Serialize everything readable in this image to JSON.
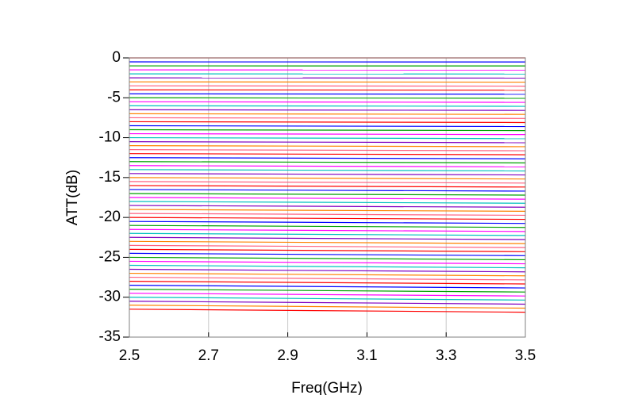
{
  "chart_data": {
    "type": "line",
    "x_label": "Freq(GHz)",
    "y_label": "ATT(dB)",
    "x": [
      2.5,
      3.5
    ],
    "xlim": [
      2.5,
      3.5
    ],
    "xticks": [
      2.5,
      2.7,
      2.9,
      3.1,
      3.3,
      3.5
    ],
    "ylim": [
      -35,
      0
    ],
    "yticks": [
      0,
      -5,
      -10,
      -15,
      -20,
      -25,
      -30,
      -35
    ],
    "grid": true,
    "series": [
      {
        "color": "#ff0000",
        "values": [
          0,
          0
        ]
      },
      {
        "color": "#0000ff",
        "values": [
          -0.5,
          -0.51
        ]
      },
      {
        "color": "#00a000",
        "values": [
          -1,
          -1.01
        ]
      },
      {
        "color": "#ff00ff",
        "values": [
          -1.5,
          -1.52
        ]
      },
      {
        "color": "#00c0c0",
        "values": [
          -2,
          -2.02
        ]
      },
      {
        "color": "#8000c0",
        "values": [
          -2.5,
          -2.53
        ]
      },
      {
        "color": "#ff8000",
        "values": [
          -3,
          -3.04
        ]
      },
      {
        "color": "#ff6080",
        "values": [
          -3.5,
          -3.54
        ]
      },
      {
        "color": "#ff0000",
        "values": [
          -4,
          -4.05
        ]
      },
      {
        "color": "#0000ff",
        "values": [
          -4.5,
          -4.55
        ]
      },
      {
        "color": "#00a000",
        "values": [
          -5,
          -5.06
        ]
      },
      {
        "color": "#ff00ff",
        "values": [
          -5.5,
          -5.57
        ]
      },
      {
        "color": "#00c0c0",
        "values": [
          -6,
          -6.07
        ]
      },
      {
        "color": "#8000c0",
        "values": [
          -6.5,
          -6.58
        ]
      },
      {
        "color": "#ff8000",
        "values": [
          -7,
          -7.08
        ]
      },
      {
        "color": "#ff6080",
        "values": [
          -7.5,
          -7.59
        ]
      },
      {
        "color": "#ff0000",
        "values": [
          -8,
          -8.1
        ]
      },
      {
        "color": "#0000ff",
        "values": [
          -8.5,
          -8.6
        ]
      },
      {
        "color": "#00a000",
        "values": [
          -9,
          -9.11
        ]
      },
      {
        "color": "#ff00ff",
        "values": [
          -9.5,
          -9.61
        ]
      },
      {
        "color": "#00c0c0",
        "values": [
          -10,
          -10.12
        ]
      },
      {
        "color": "#8000c0",
        "values": [
          -10.5,
          -10.63
        ]
      },
      {
        "color": "#ff8000",
        "values": [
          -11,
          -11.13
        ]
      },
      {
        "color": "#ff6080",
        "values": [
          -11.5,
          -11.64
        ]
      },
      {
        "color": "#ff0000",
        "values": [
          -12,
          -12.14
        ]
      },
      {
        "color": "#0000ff",
        "values": [
          -12.5,
          -12.65
        ]
      },
      {
        "color": "#00a000",
        "values": [
          -13,
          -13.16
        ]
      },
      {
        "color": "#ff00ff",
        "values": [
          -13.5,
          -13.66
        ]
      },
      {
        "color": "#00c0c0",
        "values": [
          -14,
          -14.17
        ]
      },
      {
        "color": "#8000c0",
        "values": [
          -14.5,
          -14.67
        ]
      },
      {
        "color": "#ff8000",
        "values": [
          -15,
          -15.18
        ]
      },
      {
        "color": "#ff6080",
        "values": [
          -15.5,
          -15.69
        ]
      },
      {
        "color": "#ff0000",
        "values": [
          -16,
          -16.19
        ]
      },
      {
        "color": "#0000ff",
        "values": [
          -16.5,
          -16.7
        ]
      },
      {
        "color": "#00a000",
        "values": [
          -17,
          -17.2
        ]
      },
      {
        "color": "#ff00ff",
        "values": [
          -17.5,
          -17.71
        ]
      },
      {
        "color": "#00c0c0",
        "values": [
          -18,
          -18.22
        ]
      },
      {
        "color": "#8000c0",
        "values": [
          -18.5,
          -18.72
        ]
      },
      {
        "color": "#ff8000",
        "values": [
          -19,
          -19.23
        ]
      },
      {
        "color": "#ff6080",
        "values": [
          -19.5,
          -19.73
        ]
      },
      {
        "color": "#ff0000",
        "values": [
          -20,
          -20.24
        ]
      },
      {
        "color": "#0000ff",
        "values": [
          -20.5,
          -20.75
        ]
      },
      {
        "color": "#00a000",
        "values": [
          -21,
          -21.25
        ]
      },
      {
        "color": "#ff00ff",
        "values": [
          -21.5,
          -21.76
        ]
      },
      {
        "color": "#00c0c0",
        "values": [
          -22,
          -22.26
        ]
      },
      {
        "color": "#8000c0",
        "values": [
          -22.5,
          -22.77
        ]
      },
      {
        "color": "#ff8000",
        "values": [
          -23,
          -23.28
        ]
      },
      {
        "color": "#ff6080",
        "values": [
          -23.5,
          -23.78
        ]
      },
      {
        "color": "#ff0000",
        "values": [
          -24,
          -24.29
        ]
      },
      {
        "color": "#0000ff",
        "values": [
          -24.5,
          -24.79
        ]
      },
      {
        "color": "#00a000",
        "values": [
          -25,
          -25.3
        ]
      },
      {
        "color": "#ff00ff",
        "values": [
          -25.5,
          -25.81
        ]
      },
      {
        "color": "#00c0c0",
        "values": [
          -26,
          -26.31
        ]
      },
      {
        "color": "#8000c0",
        "values": [
          -26.5,
          -26.82
        ]
      },
      {
        "color": "#ff8000",
        "values": [
          -27,
          -27.32
        ]
      },
      {
        "color": "#ff6080",
        "values": [
          -27.5,
          -27.83
        ]
      },
      {
        "color": "#ff0000",
        "values": [
          -28,
          -28.34
        ]
      },
      {
        "color": "#0000ff",
        "values": [
          -28.5,
          -28.84
        ]
      },
      {
        "color": "#00a000",
        "values": [
          -29,
          -29.35
        ]
      },
      {
        "color": "#ff00ff",
        "values": [
          -29.5,
          -29.85
        ]
      },
      {
        "color": "#00c0c0",
        "values": [
          -30,
          -30.36
        ]
      },
      {
        "color": "#8000c0",
        "values": [
          -30.5,
          -30.87
        ]
      },
      {
        "color": "#ff8000",
        "values": [
          -31,
          -31.37
        ]
      },
      {
        "color": "#ff0000",
        "values": [
          -31.5,
          -31.88
        ]
      }
    ]
  }
}
